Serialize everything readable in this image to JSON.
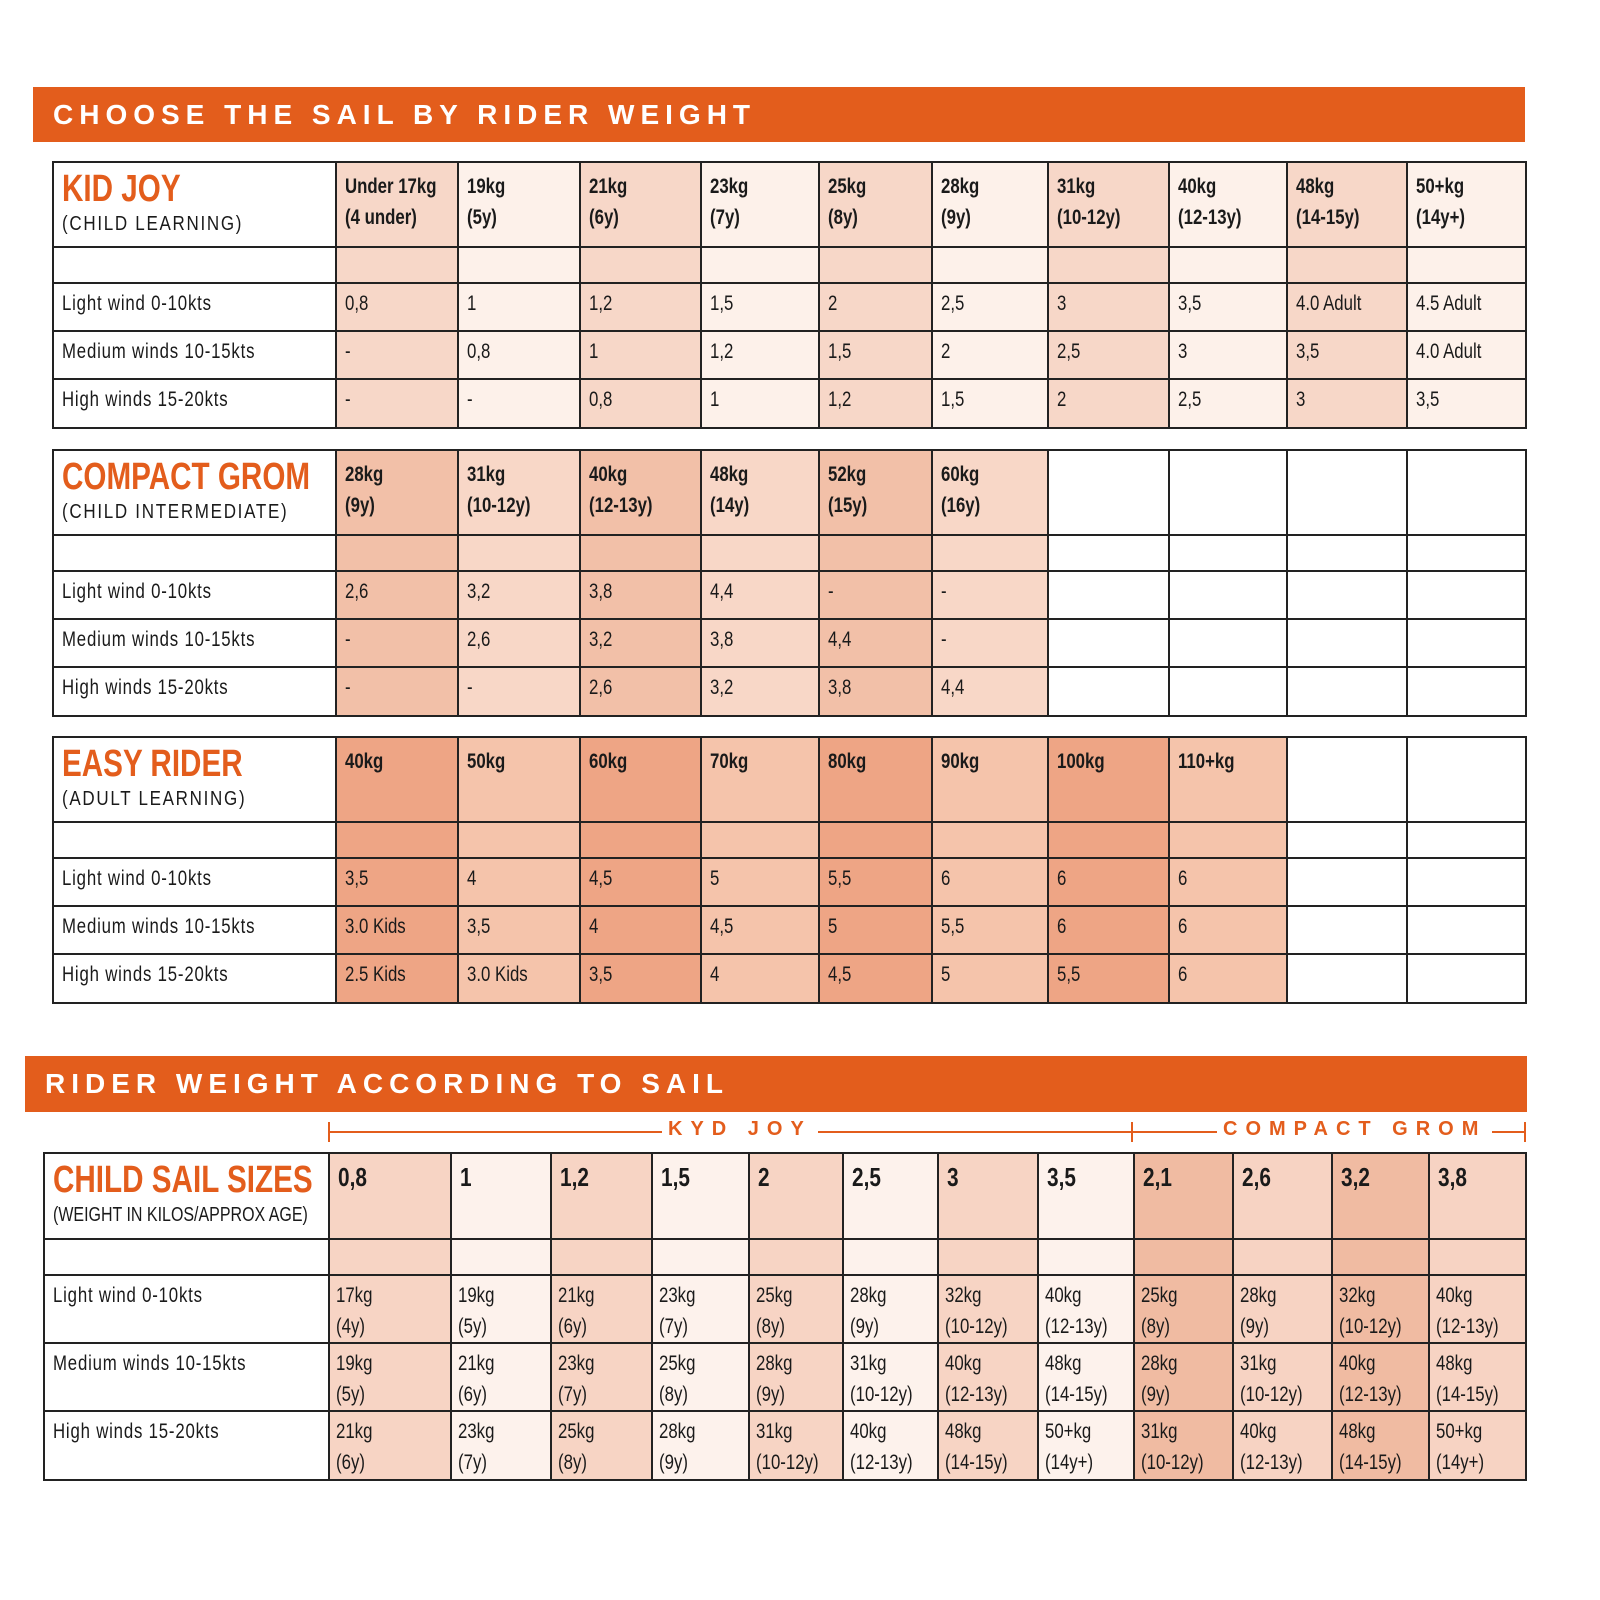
{
  "banner1": "CHOOSE THE SAIL BY RIDER WEIGHT",
  "banner2": "RIDER WEIGHT ACCORDING TO SAIL",
  "row_labels": [
    "Light wind 0-10kts",
    "Medium winds 10-15kts",
    "High winds 15-20kts"
  ],
  "tables": [
    {
      "title": "KID JOY",
      "subtitle": "(CHILD LEARNING)",
      "colors": [
        "#f7d7c8",
        "#fdf1ea"
      ],
      "headers": [
        [
          "Under 17kg",
          "(4 under)"
        ],
        [
          "19kg",
          "(5y)"
        ],
        [
          "21kg",
          "(6y)"
        ],
        [
          "23kg",
          "(7y)"
        ],
        [
          "25kg",
          "(8y)"
        ],
        [
          "28kg",
          "(9y)"
        ],
        [
          "31kg",
          "(10-12y)"
        ],
        [
          "40kg",
          "(12-13y)"
        ],
        [
          "48kg",
          "(14-15y)"
        ],
        [
          "50+kg",
          "(14y+)"
        ]
      ],
      "rows": [
        [
          "0,8",
          "1",
          "1,2",
          "1,5",
          "2",
          "2,5",
          "3",
          "3,5",
          "4.0 Adult",
          "4.5 Adult"
        ],
        [
          "-",
          "0,8",
          "1",
          "1,2",
          "1,5",
          "2",
          "2,5",
          "3",
          "3,5",
          "4.0 Adult"
        ],
        [
          "-",
          "-",
          "0,8",
          "1",
          "1,2",
          "1,5",
          "2",
          "2,5",
          "3",
          "3,5"
        ]
      ]
    },
    {
      "title": "COMPACT GROM",
      "subtitle": "(CHILD INTERMEDIATE)",
      "colors": [
        "#f2c0a8",
        "#f8d7c7"
      ],
      "headers": [
        [
          "28kg",
          "(9y)"
        ],
        [
          "31kg",
          "(10-12y)"
        ],
        [
          "40kg",
          "(12-13y)"
        ],
        [
          "48kg",
          "(14y)"
        ],
        [
          "52kg",
          "(15y)"
        ],
        [
          "60kg",
          "(16y)"
        ]
      ],
      "rows": [
        [
          "2,6",
          "3,2",
          "3,8",
          "4,4",
          "-",
          "-"
        ],
        [
          "-",
          "2,6",
          "3,2",
          "3,8",
          "4,4",
          "-"
        ],
        [
          "-",
          "-",
          "2,6",
          "3,2",
          "3,8",
          "4,4"
        ]
      ]
    },
    {
      "title": "EASY RIDER",
      "subtitle": "(ADULT LEARNING)",
      "colors": [
        "#eea585",
        "#f5c4ab"
      ],
      "headers": [
        [
          "40kg"
        ],
        [
          "50kg"
        ],
        [
          "60kg"
        ],
        [
          "70kg"
        ],
        [
          "80kg"
        ],
        [
          "90kg"
        ],
        [
          "100kg"
        ],
        [
          "110+kg"
        ]
      ],
      "rows": [
        [
          "3,5",
          "4",
          "4,5",
          "5",
          "5,5",
          "6",
          "6",
          "6"
        ],
        [
          "3.0 Kids",
          "3,5",
          "4",
          "4,5",
          "5",
          "5,5",
          "6",
          "6"
        ],
        [
          "2.5 Kids",
          "3.0 Kids",
          "3,5",
          "4",
          "4,5",
          "5",
          "5,5",
          "6"
        ]
      ]
    }
  ],
  "sail_table": {
    "group_kyd": "KYD JOY",
    "group_grom": "COMPACT GROM",
    "title": "CHILD SAIL SIZES",
    "subtitle": "(WEIGHT IN KILOS/APPROX AGE)",
    "colors_kyd": [
      "#f7d4c4",
      "#fdf2ec"
    ],
    "colors_grom": [
      "#f0bba2",
      "#f7d3c3"
    ],
    "sizes": [
      "0,8",
      "1",
      "1,2",
      "1,5",
      "2",
      "2,5",
      "3",
      "3,5",
      "2,1",
      "2,6",
      "3,2",
      "3,8"
    ],
    "rows": [
      [
        [
          "17kg",
          "(4y)"
        ],
        [
          "19kg",
          "(5y)"
        ],
        [
          "21kg",
          "(6y)"
        ],
        [
          "23kg",
          "(7y)"
        ],
        [
          "25kg",
          "(8y)"
        ],
        [
          "28kg",
          "(9y)"
        ],
        [
          "32kg",
          "(10-12y)"
        ],
        [
          "40kg",
          "(12-13y)"
        ],
        [
          "25kg",
          "(8y)"
        ],
        [
          "28kg",
          "(9y)"
        ],
        [
          "32kg",
          "(10-12y)"
        ],
        [
          "40kg",
          "(12-13y)"
        ]
      ],
      [
        [
          "19kg",
          "(5y)"
        ],
        [
          "21kg",
          "(6y)"
        ],
        [
          "23kg",
          "(7y)"
        ],
        [
          "25kg",
          "(8y)"
        ],
        [
          "28kg",
          "(9y)"
        ],
        [
          "31kg",
          "(10-12y)"
        ],
        [
          "40kg",
          "(12-13y)"
        ],
        [
          "48kg",
          "(14-15y)"
        ],
        [
          "28kg",
          "(9y)"
        ],
        [
          "31kg",
          "(10-12y)"
        ],
        [
          "40kg",
          "(12-13y)"
        ],
        [
          "48kg",
          "(14-15y)"
        ]
      ],
      [
        [
          "21kg",
          "(6y)"
        ],
        [
          "23kg",
          "(7y)"
        ],
        [
          "25kg",
          "(8y)"
        ],
        [
          "28kg",
          "(9y)"
        ],
        [
          "31kg",
          "(10-12y)"
        ],
        [
          "40kg",
          "(12-13y)"
        ],
        [
          "48kg",
          "(14-15y)"
        ],
        [
          "50+kg",
          "(14y+)"
        ],
        [
          "31kg",
          "(10-12y)"
        ],
        [
          "40kg",
          "(12-13y)"
        ],
        [
          "48kg",
          "(14-15y)"
        ],
        [
          "50+kg",
          "(14y+)"
        ]
      ]
    ]
  }
}
